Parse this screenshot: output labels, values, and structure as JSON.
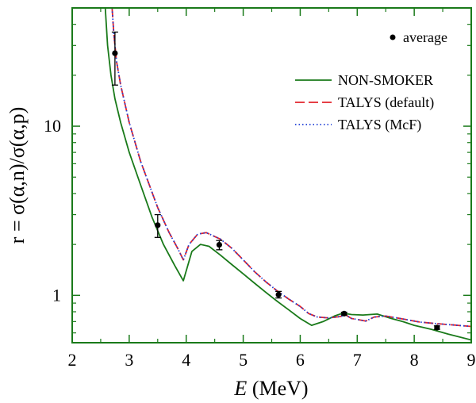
{
  "chart_data": {
    "type": "line",
    "xlabel": {
      "var": "E",
      "unit": " (MeV)"
    },
    "ylabel": "r = σ(α,n)/σ(α,p)",
    "xlim": [
      2,
      9
    ],
    "ylim": [
      0.525,
      50
    ],
    "yscale": "log",
    "x_ticks": [
      "2",
      "3",
      "4",
      "5",
      "6",
      "7",
      "8",
      "9"
    ],
    "y_ticks": [
      "1",
      "10"
    ],
    "legend_position": "top-right",
    "series": [
      {
        "name": "NON-SMOKER",
        "style": "solid",
        "color": "#1a7a1a",
        "x": [
          2.58,
          2.62,
          2.68,
          2.75,
          2.85,
          3.0,
          3.2,
          3.4,
          3.6,
          3.8,
          3.95,
          4.1,
          4.25,
          4.4,
          4.6,
          4.8,
          5.0,
          5.2,
          5.4,
          5.6,
          5.8,
          6.0,
          6.2,
          6.4,
          6.6,
          6.75,
          6.9,
          7.1,
          7.35,
          7.6,
          7.8,
          8.0,
          8.3,
          8.6,
          9.0
        ],
        "values": [
          50,
          30,
          20,
          14.5,
          10.5,
          7.0,
          4.5,
          2.9,
          2.0,
          1.5,
          1.22,
          1.82,
          2.0,
          1.95,
          1.73,
          1.52,
          1.34,
          1.18,
          1.04,
          0.92,
          0.82,
          0.73,
          0.665,
          0.7,
          0.755,
          0.785,
          0.77,
          0.765,
          0.775,
          0.73,
          0.7,
          0.665,
          0.63,
          0.59,
          0.545
        ]
      },
      {
        "name": "TALYS (default)",
        "style": "dashed",
        "color": "#e3242b",
        "x": [
          2.7,
          2.73,
          2.78,
          2.85,
          3.0,
          3.2,
          3.5,
          3.7,
          3.85,
          3.95,
          4.05,
          4.2,
          4.35,
          4.6,
          4.8,
          5.0,
          5.2,
          5.4,
          5.6,
          5.8,
          6.0,
          6.15,
          6.3,
          6.5,
          6.7,
          6.8,
          6.9,
          7.0,
          7.15,
          7.3,
          7.5,
          7.7,
          7.9,
          8.1,
          8.4,
          8.7,
          9.0
        ],
        "values": [
          50,
          35,
          24,
          17.5,
          10.5,
          6.2,
          3.3,
          2.35,
          1.9,
          1.62,
          2.0,
          2.3,
          2.35,
          2.15,
          1.9,
          1.62,
          1.38,
          1.2,
          1.06,
          0.95,
          0.86,
          0.78,
          0.745,
          0.735,
          0.75,
          0.765,
          0.73,
          0.72,
          0.705,
          0.745,
          0.755,
          0.735,
          0.715,
          0.695,
          0.68,
          0.668,
          0.655
        ]
      },
      {
        "name": "TALYS (McF)",
        "style": "dotted",
        "color": "#1f3fd6",
        "x": [
          2.7,
          2.73,
          2.78,
          2.85,
          3.0,
          3.2,
          3.5,
          3.7,
          3.85,
          3.95,
          4.05,
          4.2,
          4.35,
          4.6,
          4.8,
          5.0,
          5.2,
          5.4,
          5.6,
          5.8,
          6.0,
          6.15,
          6.3,
          6.5,
          6.7,
          6.8,
          6.9,
          7.0,
          7.15,
          7.3,
          7.5,
          7.7,
          7.9,
          8.1,
          8.4,
          8.7,
          9.0
        ],
        "values": [
          50,
          35,
          24,
          17.5,
          10.5,
          6.2,
          3.3,
          2.35,
          1.9,
          1.62,
          2.0,
          2.3,
          2.35,
          2.15,
          1.9,
          1.62,
          1.38,
          1.2,
          1.06,
          0.95,
          0.86,
          0.78,
          0.745,
          0.735,
          0.75,
          0.765,
          0.73,
          0.72,
          0.705,
          0.745,
          0.755,
          0.735,
          0.715,
          0.695,
          0.68,
          0.668,
          0.655
        ]
      }
    ],
    "points": {
      "name": "average",
      "color": "#000000",
      "data": [
        {
          "x": 2.75,
          "y": 27.0,
          "ylo": 17.5,
          "yhi": 36.0
        },
        {
          "x": 3.5,
          "y": 2.6,
          "ylo": 2.2,
          "yhi": 3.0
        },
        {
          "x": 4.58,
          "y": 1.99,
          "ylo": 1.86,
          "yhi": 2.11
        },
        {
          "x": 5.62,
          "y": 1.01,
          "ylo": 0.965,
          "yhi": 1.055
        },
        {
          "x": 6.77,
          "y": 0.78,
          "ylo": 0.765,
          "yhi": 0.795
        },
        {
          "x": 8.4,
          "y": 0.645,
          "ylo": 0.63,
          "yhi": 0.66
        }
      ]
    }
  }
}
